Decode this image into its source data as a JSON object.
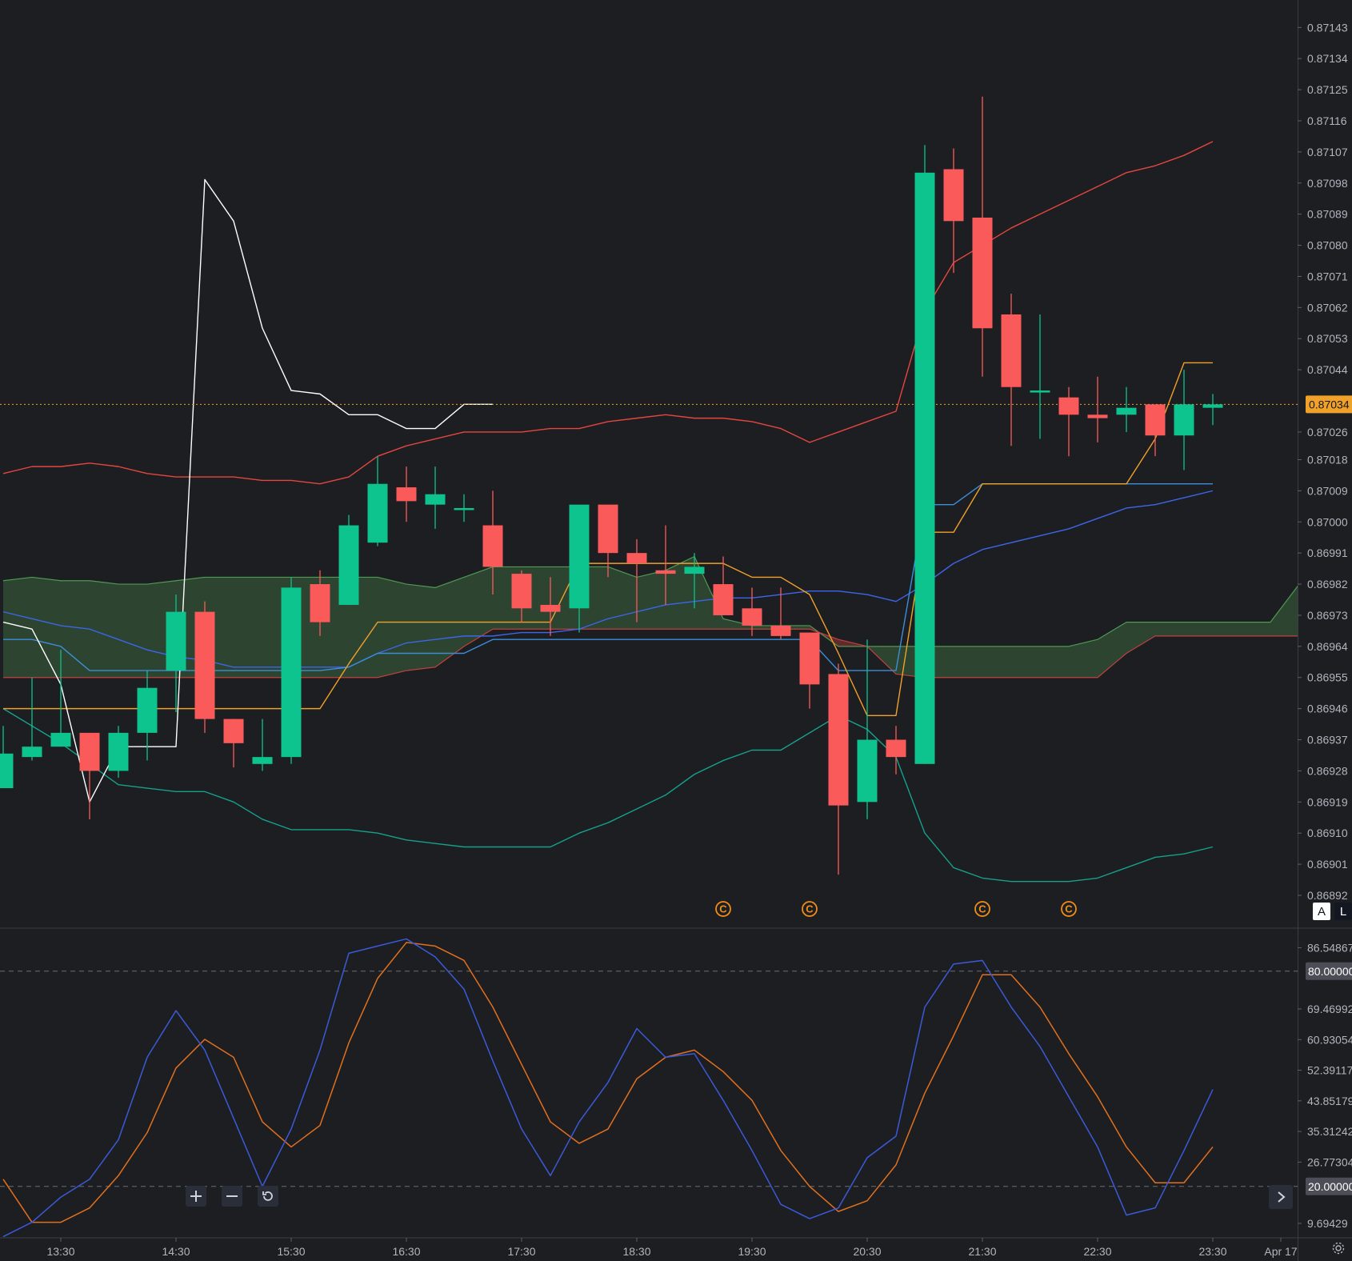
{
  "colors": {
    "background": "#1d1e22",
    "up": "#0dc48f",
    "down": "#fb5a5a",
    "bb_upper": "#e5463f",
    "bb_lower": "#16a08c",
    "bb_basis": "#3d66e8",
    "tenkan": "#3b8ed8",
    "kijun": "#f0a12a",
    "lagging": "#ffffff",
    "cloud_bear": "#6b2c2f",
    "cloud_bull": "#2f4b33",
    "stoch_k": "#3a5ad8",
    "stoch_d": "#e0701e",
    "last_price": "#f0a12a"
  },
  "price_axis": {
    "labels": [
      "0.87143",
      "0.87134",
      "0.87125",
      "0.87116",
      "0.87107",
      "0.87098",
      "0.87089",
      "0.87080",
      "0.87071",
      "0.87062",
      "0.87053",
      "0.87044",
      "0.87026",
      "0.87018",
      "0.87009",
      "0.87000",
      "0.86991",
      "0.86982",
      "0.86973",
      "0.86964",
      "0.86955",
      "0.86946",
      "0.86937",
      "0.86928",
      "0.86919",
      "0.86910",
      "0.86901",
      "0.86892"
    ],
    "last_price": "0.87034",
    "auto_label": "A",
    "log_label": "L"
  },
  "time_axis": {
    "labels": [
      "13:30",
      "14:30",
      "15:30",
      "16:30",
      "17:30",
      "18:30",
      "19:30",
      "20:30",
      "21:30",
      "22:30",
      "23:30",
      "Apr 17"
    ]
  },
  "stoch_axis": {
    "labels": [
      "86.54867",
      "69.46992",
      "60.93054",
      "52.39117",
      "43.85179",
      "35.31242",
      "26.77304",
      "9.69429"
    ],
    "upper_band": "80.00000",
    "lower_band": "20.00000"
  },
  "event_markers": [
    {
      "index": 25,
      "symbol": "C"
    },
    {
      "index": 28,
      "symbol": "C"
    },
    {
      "index": 34,
      "symbol": "C"
    },
    {
      "index": 37,
      "symbol": "C"
    }
  ],
  "chart_data": [
    {
      "type": "candlestick",
      "x_start": "13:00",
      "x_interval_minutes": 15,
      "ylim": [
        0.86892,
        0.87147
      ],
      "candles": [
        {
          "o": 0.86923,
          "h": 0.86941,
          "l": 0.86923,
          "c": 0.86933
        },
        {
          "o": 0.86932,
          "h": 0.86955,
          "l": 0.86931,
          "c": 0.86935
        },
        {
          "o": 0.86935,
          "h": 0.86963,
          "l": 0.86935,
          "c": 0.86939
        },
        {
          "o": 0.86939,
          "h": 0.86939,
          "l": 0.86914,
          "c": 0.86928
        },
        {
          "o": 0.86928,
          "h": 0.86941,
          "l": 0.86926,
          "c": 0.86939
        },
        {
          "o": 0.86939,
          "h": 0.86957,
          "l": 0.86931,
          "c": 0.86952
        },
        {
          "o": 0.86957,
          "h": 0.86979,
          "l": 0.86945,
          "c": 0.86974
        },
        {
          "o": 0.86974,
          "h": 0.86977,
          "l": 0.86939,
          "c": 0.86943
        },
        {
          "o": 0.86943,
          "h": 0.86943,
          "l": 0.86929,
          "c": 0.86936
        },
        {
          "o": 0.8693,
          "h": 0.86943,
          "l": 0.86928,
          "c": 0.86932
        },
        {
          "o": 0.86932,
          "h": 0.86984,
          "l": 0.8693,
          "c": 0.86981
        },
        {
          "o": 0.86982,
          "h": 0.86986,
          "l": 0.86967,
          "c": 0.86971
        },
        {
          "o": 0.86976,
          "h": 0.87002,
          "l": 0.86976,
          "c": 0.86999
        },
        {
          "o": 0.86994,
          "h": 0.87019,
          "l": 0.86993,
          "c": 0.87011
        },
        {
          "o": 0.8701,
          "h": 0.87016,
          "l": 0.87,
          "c": 0.87006
        },
        {
          "o": 0.87005,
          "h": 0.87016,
          "l": 0.86998,
          "c": 0.87008
        },
        {
          "o": 0.87004,
          "h": 0.87008,
          "l": 0.87,
          "c": 0.87004
        },
        {
          "o": 0.86999,
          "h": 0.87009,
          "l": 0.86979,
          "c": 0.86987
        },
        {
          "o": 0.86985,
          "h": 0.86986,
          "l": 0.86971,
          "c": 0.86975
        },
        {
          "o": 0.86976,
          "h": 0.86984,
          "l": 0.86967,
          "c": 0.86974
        },
        {
          "o": 0.86975,
          "h": 0.87004,
          "l": 0.86968,
          "c": 0.87005
        },
        {
          "o": 0.87005,
          "h": 0.87005,
          "l": 0.86984,
          "c": 0.86991
        },
        {
          "o": 0.86991,
          "h": 0.86995,
          "l": 0.86971,
          "c": 0.86988
        },
        {
          "o": 0.86986,
          "h": 0.86999,
          "l": 0.86976,
          "c": 0.86985
        },
        {
          "o": 0.86985,
          "h": 0.86991,
          "l": 0.86975,
          "c": 0.86987
        },
        {
          "o": 0.86982,
          "h": 0.8699,
          "l": 0.86973,
          "c": 0.86973
        },
        {
          "o": 0.86975,
          "h": 0.86981,
          "l": 0.86967,
          "c": 0.8697
        },
        {
          "o": 0.8697,
          "h": 0.86981,
          "l": 0.86966,
          "c": 0.86967
        },
        {
          "o": 0.86968,
          "h": 0.86968,
          "l": 0.86946,
          "c": 0.86953
        },
        {
          "o": 0.86956,
          "h": 0.86959,
          "l": 0.86898,
          "c": 0.86918
        },
        {
          "o": 0.86919,
          "h": 0.86966,
          "l": 0.86914,
          "c": 0.86937
        },
        {
          "o": 0.86937,
          "h": 0.86941,
          "l": 0.86927,
          "c": 0.86932
        },
        {
          "o": 0.8693,
          "h": 0.87109,
          "l": 0.8693,
          "c": 0.87101
        },
        {
          "o": 0.87102,
          "h": 0.87108,
          "l": 0.87072,
          "c": 0.87087
        },
        {
          "o": 0.87088,
          "h": 0.87123,
          "l": 0.87042,
          "c": 0.87056
        },
        {
          "o": 0.8706,
          "h": 0.87066,
          "l": 0.87022,
          "c": 0.87039
        },
        {
          "o": 0.87038,
          "h": 0.8706,
          "l": 0.87024,
          "c": 0.87038
        },
        {
          "o": 0.87036,
          "h": 0.87039,
          "l": 0.87019,
          "c": 0.87031
        },
        {
          "o": 0.87031,
          "h": 0.87042,
          "l": 0.87023,
          "c": 0.8703
        },
        {
          "o": 0.87031,
          "h": 0.87039,
          "l": 0.87026,
          "c": 0.87033
        },
        {
          "o": 0.87034,
          "h": 0.87033,
          "l": 0.87019,
          "c": 0.87025
        },
        {
          "o": 0.87025,
          "h": 0.87044,
          "l": 0.87015,
          "c": 0.87034
        },
        {
          "o": 0.87033,
          "h": 0.87037,
          "l": 0.87028,
          "c": 0.87034
        }
      ],
      "bollinger": {
        "upper": [
          0.87014,
          0.87016,
          0.87016,
          0.87017,
          0.87016,
          0.87014,
          0.87013,
          0.87013,
          0.87013,
          0.87012,
          0.87012,
          0.87011,
          0.87013,
          0.87019,
          0.87022,
          0.87024,
          0.87026,
          0.87026,
          0.87026,
          0.87027,
          0.87027,
          0.87029,
          0.8703,
          0.87031,
          0.8703,
          0.8703,
          0.87029,
          0.87027,
          0.87023,
          0.87026,
          0.87029,
          0.87032,
          0.87061,
          0.87075,
          0.8708,
          0.87085,
          0.87089,
          0.87093,
          0.87097,
          0.87101,
          0.87103,
          0.87106,
          0.8711
        ],
        "basis": [
          0.86974,
          0.86972,
          0.8697,
          0.86969,
          0.86966,
          0.86963,
          0.86961,
          0.8696,
          0.86958,
          0.86958,
          0.86958,
          0.86958,
          0.86958,
          0.86962,
          0.86965,
          0.86966,
          0.86967,
          0.86967,
          0.86968,
          0.86968,
          0.86969,
          0.86972,
          0.86974,
          0.86976,
          0.86977,
          0.86978,
          0.86978,
          0.86979,
          0.8698,
          0.8698,
          0.86979,
          0.86977,
          0.86982,
          0.86988,
          0.86992,
          0.86994,
          0.86996,
          0.86998,
          0.87001,
          0.87004,
          0.87005,
          0.87007,
          0.87009
        ],
        "lower": [
          0.86946,
          0.86941,
          0.86936,
          0.8693,
          0.86924,
          0.86923,
          0.86922,
          0.86922,
          0.86919,
          0.86914,
          0.86911,
          0.86911,
          0.86911,
          0.8691,
          0.86908,
          0.86907,
          0.86906,
          0.86906,
          0.86906,
          0.86906,
          0.8691,
          0.86913,
          0.86917,
          0.86921,
          0.86927,
          0.86931,
          0.86934,
          0.86934,
          0.86939,
          0.86944,
          0.8694,
          0.86932,
          0.8691,
          0.869,
          0.86897,
          0.86896,
          0.86896,
          0.86896,
          0.86897,
          0.869,
          0.86903,
          0.86904,
          0.86906
        ]
      },
      "ichimoku": {
        "tenkan": [
          0.86966,
          0.86966,
          0.86964,
          0.86957,
          0.86957,
          0.86957,
          0.86957,
          0.86957,
          0.86957,
          0.86957,
          0.86957,
          0.86957,
          0.86958,
          0.86962,
          0.86962,
          0.86962,
          0.86962,
          0.86966,
          0.86966,
          0.86966,
          0.86966,
          0.86966,
          0.86966,
          0.86966,
          0.86966,
          0.86966,
          0.86966,
          0.86966,
          0.86966,
          0.86957,
          0.86957,
          0.86957,
          0.87005,
          0.87005,
          0.87011,
          0.87011,
          0.87011,
          0.87011,
          0.87011,
          0.87011,
          0.87011,
          0.87011,
          0.87011
        ],
        "kijun": [
          0.86946,
          0.86946,
          0.86946,
          0.86946,
          0.86946,
          0.86946,
          0.86946,
          0.86946,
          0.86946,
          0.86946,
          0.86946,
          0.86946,
          0.86959,
          0.86971,
          0.86971,
          0.86971,
          0.86971,
          0.86971,
          0.86971,
          0.86971,
          0.86988,
          0.86988,
          0.86988,
          0.86988,
          0.86988,
          0.86988,
          0.86984,
          0.86984,
          0.86979,
          0.86962,
          0.86944,
          0.86944,
          0.86997,
          0.86997,
          0.87011,
          0.87011,
          0.87011,
          0.87011,
          0.87011,
          0.87011,
          0.87024,
          0.87046,
          0.87046
        ],
        "lagging": [
          0.86971,
          0.86969,
          0.86953,
          0.86919,
          0.86935,
          0.86935,
          0.86935,
          0.87099,
          0.87087,
          0.87056,
          0.87038,
          0.87037,
          0.87031,
          0.87031,
          0.87027,
          0.87027,
          0.87034,
          0.87034
        ]
      },
      "ichimoku_cloud": {
        "x_start_index": 0,
        "span_a": [
          0.86983,
          0.86984,
          0.86983,
          0.86983,
          0.86982,
          0.86982,
          0.86983,
          0.86984,
          0.86984,
          0.86984,
          0.86984,
          0.86984,
          0.86984,
          0.86984,
          0.86982,
          0.86981,
          0.86984,
          0.86987,
          0.86987,
          0.86987,
          0.86987,
          0.86987,
          0.86984,
          0.86986,
          0.8699,
          0.86972,
          0.8697,
          0.8697,
          0.8697,
          0.86964,
          0.86964,
          0.86964,
          0.86964,
          0.86964,
          0.86964,
          0.86964,
          0.86964,
          0.86964,
          0.86966,
          0.86971,
          0.86971,
          0.86971,
          0.86971,
          0.86971,
          0.86971,
          0.86982
        ],
        "span_b": [
          0.86955,
          0.86955,
          0.86955,
          0.86955,
          0.86955,
          0.86955,
          0.86955,
          0.86955,
          0.86955,
          0.86955,
          0.86955,
          0.86955,
          0.86955,
          0.86955,
          0.86957,
          0.86958,
          0.86964,
          0.86969,
          0.86969,
          0.86969,
          0.86969,
          0.86969,
          0.86969,
          0.86969,
          0.86969,
          0.86969,
          0.86969,
          0.86969,
          0.86969,
          0.86966,
          0.86964,
          0.86956,
          0.86955,
          0.86955,
          0.86955,
          0.86955,
          0.86955,
          0.86955,
          0.86955,
          0.86962,
          0.86967,
          0.86967,
          0.86967,
          0.86967,
          0.86967,
          0.86967
        ]
      }
    },
    {
      "type": "line",
      "name": "Stochastic",
      "ylim": [
        5,
        92
      ],
      "upper_band": 80,
      "lower_band": 20,
      "series": [
        {
          "key": "k",
          "values": [
            6,
            10,
            17,
            22,
            33,
            56,
            69,
            58,
            39,
            20,
            36,
            58,
            85,
            87,
            89,
            84,
            75,
            55,
            36,
            23,
            38,
            49,
            64,
            56,
            57,
            44,
            30,
            15,
            11,
            14,
            28,
            34,
            70,
            82,
            83,
            70,
            59,
            45,
            31,
            12,
            14,
            30,
            47
          ]
        },
        {
          "key": "d",
          "values": [
            22,
            10,
            10,
            14,
            23,
            35,
            53,
            61,
            56,
            38,
            31,
            37,
            60,
            78,
            88,
            87,
            83,
            70,
            54,
            38,
            32,
            36,
            50,
            56,
            58,
            52,
            44,
            30,
            20,
            13,
            16,
            26,
            46,
            62,
            79,
            79,
            70,
            57,
            45,
            31,
            21,
            21,
            31
          ]
        }
      ]
    }
  ]
}
